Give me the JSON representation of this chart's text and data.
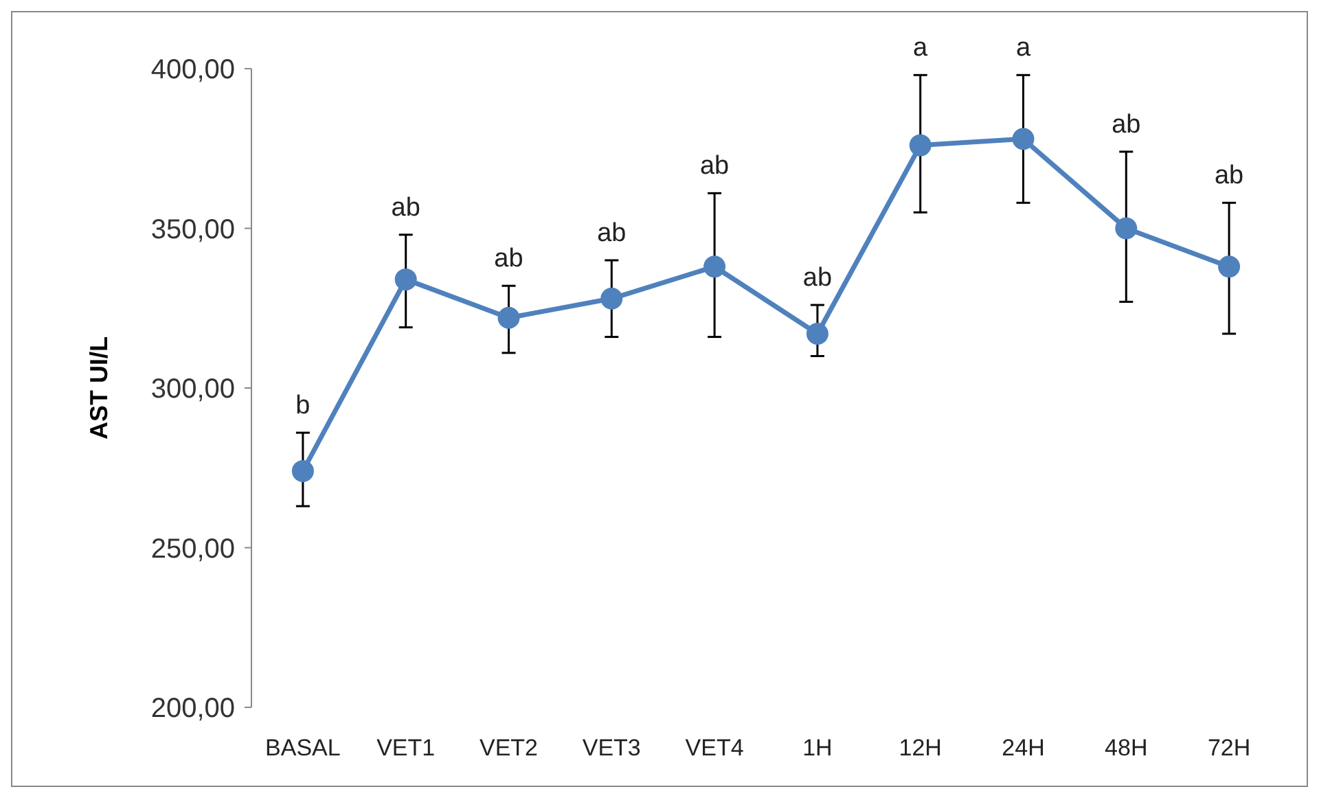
{
  "chart_data": {
    "type": "line",
    "ylabel": "AST UI/L",
    "categories": [
      "BASAL",
      "VET1",
      "VET2",
      "VET3",
      "VET4",
      "1H",
      "12H",
      "24H",
      "48H",
      "72H"
    ],
    "series": [
      {
        "color": "#4f81bd",
        "values": [
          274,
          334,
          322,
          328,
          338,
          317,
          376,
          378,
          350,
          338
        ],
        "errors": [
          [
            263,
            286
          ],
          [
            319,
            348
          ],
          [
            311,
            332
          ],
          [
            316,
            340
          ],
          [
            316,
            361
          ],
          [
            310,
            326
          ],
          [
            355,
            398
          ],
          [
            358,
            398
          ],
          [
            327,
            374
          ],
          [
            317,
            358
          ]
        ]
      }
    ],
    "ylim": [
      200,
      400
    ],
    "yticks": [
      {
        "value": 200,
        "label": "200,00"
      },
      {
        "value": 250,
        "label": "250,00"
      },
      {
        "value": 300,
        "label": "300,00"
      },
      {
        "value": 350,
        "label": "350,00"
      },
      {
        "value": 400,
        "label": "400,00"
      }
    ],
    "marker": "circle",
    "line_style": "solid",
    "annotations": [
      {
        "text": "b",
        "x": "BASAL",
        "y": 286
      },
      {
        "text": "ab",
        "x": "VET1",
        "y": 348
      },
      {
        "text": "ab",
        "x": "VET2",
        "y": 332
      },
      {
        "text": "ab",
        "x": "VET3",
        "y": 340
      },
      {
        "text": "ab",
        "x": "VET4",
        "y": 361
      },
      {
        "text": "ab",
        "x": "1H",
        "y": 326
      },
      {
        "text": "a",
        "x": "12H",
        "y": 398
      },
      {
        "text": "a",
        "x": "24H",
        "y": 398
      },
      {
        "text": "ab",
        "x": "48H",
        "y": 374
      },
      {
        "text": "ab",
        "x": "72H",
        "y": 358
      }
    ]
  }
}
